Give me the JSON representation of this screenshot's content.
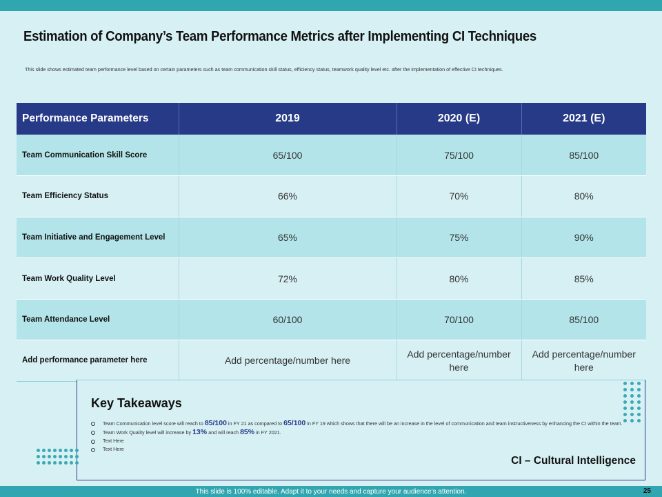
{
  "slide": {
    "title": "Estimation of Company’s Team Performance Metrics after Implementing CI Techniques",
    "subtitle": "This slide shows estimated team performance level based on certain parameters such as team communication skill status, efficiency status, teamwork quality level etc. after the implementation of effective CI techniques."
  },
  "table": {
    "headers": [
      "Performance Parameters",
      "2019",
      "2020 (E)",
      "2021 (E)"
    ],
    "rows": [
      [
        "Team Communication Skill Score",
        "65/100",
        "75/100",
        "85/100"
      ],
      [
        "Team Efficiency Status",
        "66%",
        "70%",
        "80%"
      ],
      [
        "Team Initiative and Engagement Level",
        "65%",
        "75%",
        "90%"
      ],
      [
        "Team Work Quality Level",
        "72%",
        "80%",
        "85%"
      ],
      [
        "Team Attendance Level",
        "60/100",
        "70/100",
        "85/100"
      ],
      [
        "Add performance parameter here",
        "Add percentage/number here",
        "Add percentage/number here",
        "Add percentage/number here"
      ]
    ]
  },
  "takeaways": {
    "title": "Key Takeaways",
    "bullet1": {
      "pre": "Team Communication level score will reach to ",
      "hl1": "85/100",
      "mid": " in FY 21 as compared to ",
      "hl2": "65/100",
      "post": " in FY 19 which shows that there will be an increase in the level of communication and team instructiveness by enhancing the CI within the team."
    },
    "bullet2": {
      "pre": "Team Work Quality level will increase by ",
      "hl1": "13%",
      "mid": " and will reach ",
      "hl2": "85%",
      "post": " in FY 2021."
    },
    "bullet3": "Text Here",
    "bullet4": "Text Here",
    "note": "CI – Cultural Intelligence"
  },
  "footer": {
    "text": "This slide is 100% editable. Adapt it to your needs and capture your audience’s attention.",
    "page": "25"
  },
  "colors": {
    "header": "#263a87",
    "accent": "#32a6b0",
    "row_dark": "#b3e4e9",
    "row_light": "#d7f0f4"
  }
}
